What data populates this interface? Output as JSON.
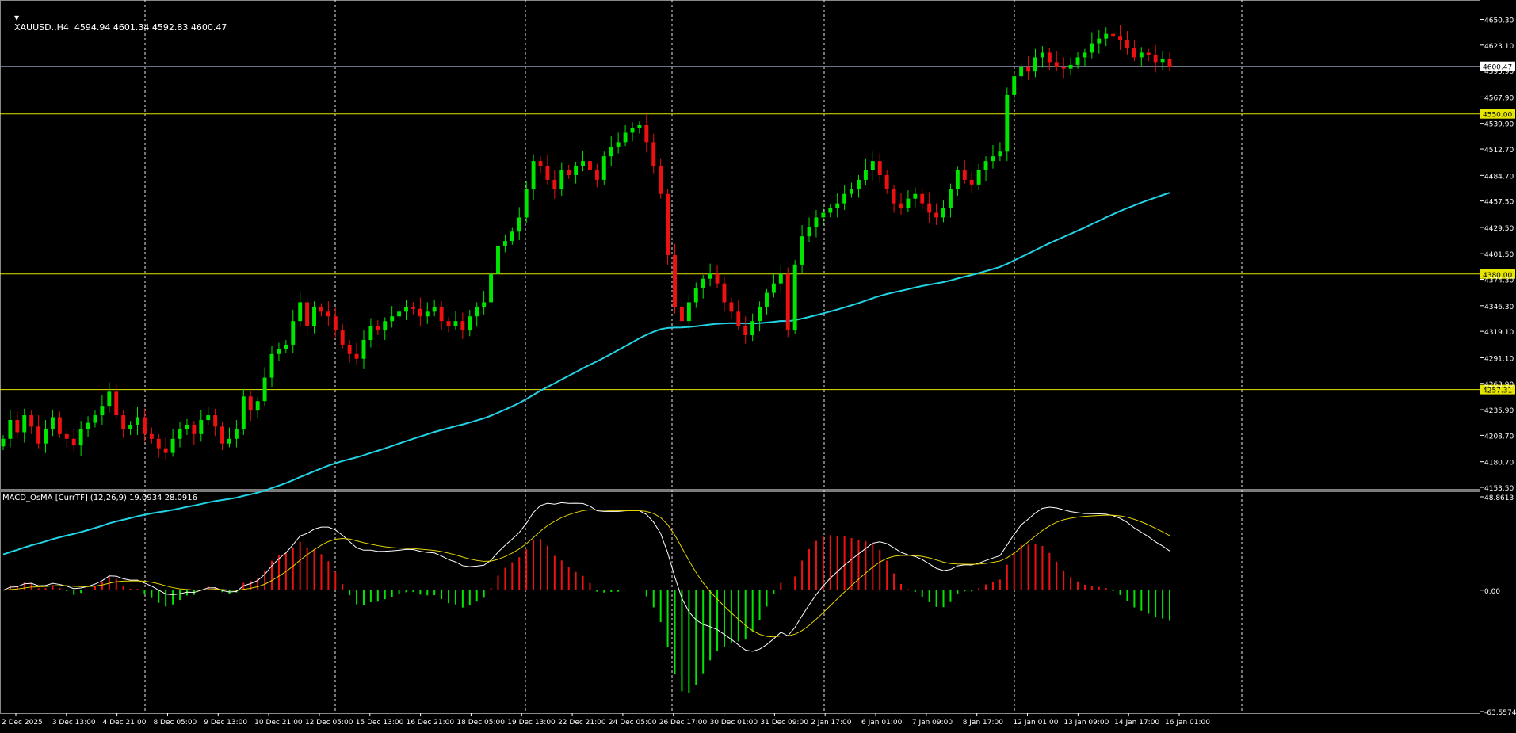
{
  "header": {
    "symbol_line": "XAUUSD.,H4  4594.94 4601.34 4592.83 4600.47",
    "indicator_line": "MACD_OsMA [CurrTF] (12,26,9) 19.0934 28.0916"
  },
  "colors": {
    "background": "#000000",
    "grid": "#e6e6e6",
    "bull": "#00e600",
    "bear": "#ee1111",
    "ma": "#22d3e6",
    "hline": "#e6e600",
    "bid_line": "#8a9bb0",
    "macd_main": "#ffffff",
    "macd_signal": "#e6d500",
    "text": "#ffffff"
  },
  "chart_data": [
    {
      "type": "candlestick",
      "ylim": [
        4153.5,
        4665
      ],
      "price_ticks": [
        "4650.30",
        "4623.10",
        "4595.90",
        "4567.90",
        "4539.90",
        "4512.70",
        "4484.70",
        "4457.50",
        "4429.50",
        "4401.50",
        "4374.30",
        "4346.30",
        "4319.10",
        "4291.10",
        "4263.90",
        "4235.90",
        "4208.70",
        "4180.70",
        "4153.50"
      ],
      "time_labels": [
        "2 Dec 2025",
        "3 Dec 13:00",
        "4 Dec 21:00",
        "8 Dec 05:00",
        "9 Dec 13:00",
        "10 Dec 21:00",
        "12 Dec 05:00",
        "15 Dec 13:00",
        "16 Dec 21:00",
        "18 Dec 05:00",
        "19 Dec 13:00",
        "22 Dec 21:00",
        "24 Dec 05:00",
        "26 Dec 17:00",
        "30 Dec 01:00",
        "31 Dec 09:00",
        "2 Jan 17:00",
        "6 Jan 01:00",
        "7 Jan 09:00",
        "8 Jan 17:00",
        "12 Jan 01:00",
        "13 Jan 09:00",
        "14 Jan 17:00",
        "16 Jan 01:00"
      ],
      "levels": [
        {
          "price": 4550.0,
          "label": "4550.00"
        },
        {
          "price": 4380.0,
          "label": "4380.00"
        },
        {
          "price": 4257.31,
          "label": "4257.31"
        }
      ],
      "bid": {
        "price": 4600.47,
        "label": "4600.47"
      },
      "ohlc_close": [
        4205,
        4225,
        4212,
        4230,
        4218,
        4200,
        4215,
        4228,
        4210,
        4205,
        4198,
        4215,
        4222,
        4230,
        4240,
        4255,
        4230,
        4215,
        4220,
        4228,
        4210,
        4205,
        4195,
        4190,
        4205,
        4215,
        4220,
        4210,
        4225,
        4230,
        4218,
        4200,
        4205,
        4215,
        4250,
        4235,
        4245,
        4270,
        4295,
        4300,
        4305,
        4330,
        4350,
        4325,
        4345,
        4340,
        4335,
        4320,
        4305,
        4295,
        4290,
        4310,
        4325,
        4320,
        4330,
        4335,
        4340,
        4345,
        4343,
        4335,
        4340,
        4345,
        4330,
        4325,
        4330,
        4320,
        4335,
        4345,
        4350,
        4380,
        4410,
        4415,
        4425,
        4440,
        4470,
        4500,
        4495,
        4480,
        4470,
        4490,
        4485,
        4495,
        4500,
        4490,
        4480,
        4505,
        4515,
        4520,
        4530,
        4535,
        4538,
        4520,
        4495,
        4465,
        4400,
        4345,
        4330,
        4350,
        4365,
        4375,
        4380,
        4370,
        4350,
        4340,
        4325,
        4315,
        4330,
        4345,
        4360,
        4370,
        4380,
        4320,
        4390,
        4420,
        4430,
        4440,
        4445,
        4450,
        4455,
        4465,
        4470,
        4480,
        4490,
        4500,
        4485,
        4470,
        4455,
        4450,
        4460,
        4465,
        4455,
        4445,
        4440,
        4450,
        4470,
        4490,
        4480,
        4475,
        4490,
        4500,
        4505,
        4510,
        4570,
        4590,
        4600,
        4595,
        4610,
        4615,
        4605,
        4600,
        4598,
        4602,
        4610,
        4615,
        4625,
        4630,
        4635,
        4632,
        4628,
        4620,
        4610,
        4615,
        4612,
        4605,
        4608,
        4600
      ],
      "ma_period_label": "",
      "macd": {
        "ylim": [
          -63.5574,
          48.8613
        ],
        "ticks": [
          "48.8613",
          "0.00",
          "-63.5574"
        ]
      }
    }
  ]
}
